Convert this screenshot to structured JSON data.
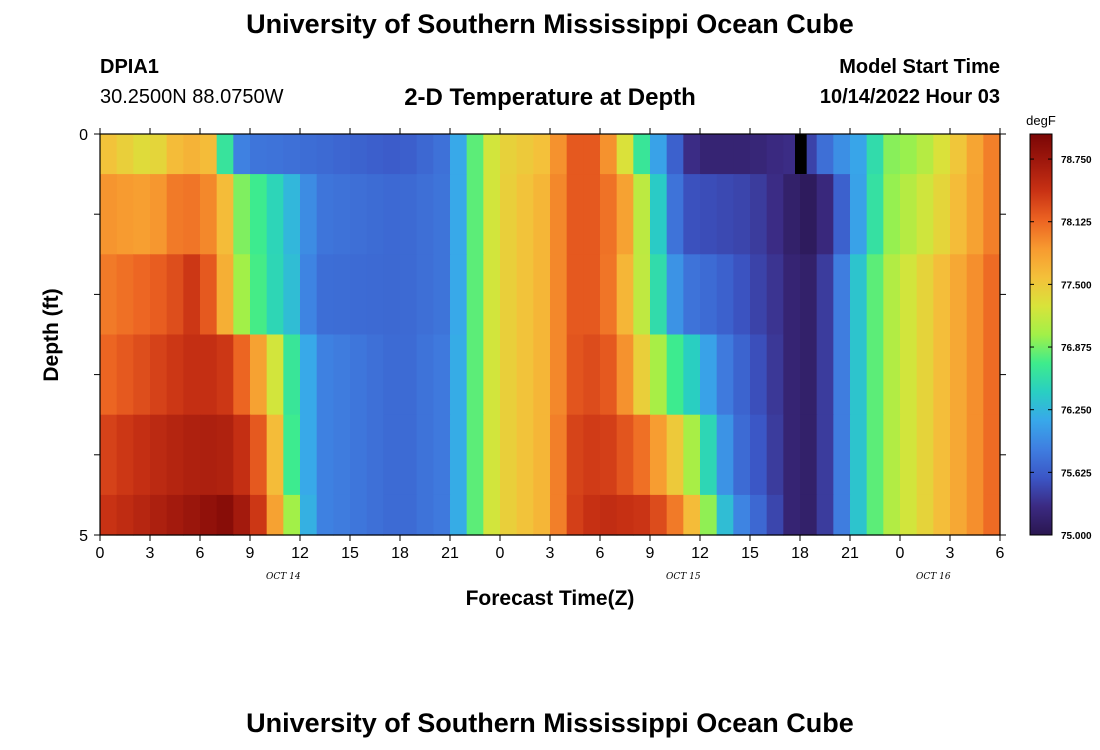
{
  "header": {
    "title": "University of Southern Mississippi Ocean Cube",
    "station_id": "DPIA1",
    "station_coords": "30.2500N  88.0750W",
    "plot_title": "2-D Temperature at Depth",
    "model_start_label": "Model Start Time",
    "model_start_time": "10/14/2022 Hour 03"
  },
  "footer": {
    "title": "University of Southern Mississippi Ocean Cube"
  },
  "colors": {
    "colormap": [
      "#2a1650",
      "#3b2a82",
      "#3b56c6",
      "#3f7ee0",
      "#38a8ea",
      "#29cfc2",
      "#3eec8c",
      "#a2f048",
      "#d9e33a",
      "#f4c03a",
      "#f79a30",
      "#ec6322",
      "#c93214",
      "#a1190d",
      "#7a0605"
    ],
    "missing": "#000000",
    "frame": "#000000"
  },
  "chart_data": {
    "type": "heatmap",
    "title": "2-D Temperature at Depth",
    "xlabel": "Forecast Time(Z)",
    "ylabel": "Depth (ft)",
    "xlim": [
      0,
      54
    ],
    "ylim": [
      0,
      5
    ],
    "x_ticks": [
      {
        "value": 0,
        "label": "0"
      },
      {
        "value": 3,
        "label": "3"
      },
      {
        "value": 6,
        "label": "6"
      },
      {
        "value": 9,
        "label": "9"
      },
      {
        "value": 12,
        "label": "12"
      },
      {
        "value": 15,
        "label": "15"
      },
      {
        "value": 18,
        "label": "18"
      },
      {
        "value": 21,
        "label": "21"
      },
      {
        "value": 24,
        "label": "0"
      },
      {
        "value": 27,
        "label": "3"
      },
      {
        "value": 30,
        "label": "6"
      },
      {
        "value": 33,
        "label": "9"
      },
      {
        "value": 36,
        "label": "12"
      },
      {
        "value": 39,
        "label": "15"
      },
      {
        "value": 42,
        "label": "18"
      },
      {
        "value": 45,
        "label": "21"
      },
      {
        "value": 48,
        "label": "0"
      },
      {
        "value": 51,
        "label": "3"
      },
      {
        "value": 54,
        "label": "6"
      }
    ],
    "date_labels": [
      {
        "value": 11,
        "label": "OCT 14"
      },
      {
        "value": 35,
        "label": "OCT 15"
      },
      {
        "value": 50,
        "label": "OCT 16"
      }
    ],
    "y_tick_labels": [
      {
        "value": 0,
        "label": "0"
      },
      {
        "value": 5,
        "label": "5"
      }
    ],
    "colorbar": {
      "unit": "degF",
      "min": 75.0,
      "max": 79.0,
      "ticks": [
        {
          "value": 75.0,
          "label": "75.000"
        },
        {
          "value": 75.625,
          "label": "75.625"
        },
        {
          "value": 76.25,
          "label": "76.250"
        },
        {
          "value": 76.875,
          "label": "76.875"
        },
        {
          "value": 77.5,
          "label": "77.500"
        },
        {
          "value": 78.125,
          "label": "78.125"
        },
        {
          "value": 78.75,
          "label": "78.750"
        }
      ]
    },
    "depth_levels": [
      {
        "top": 0.0,
        "bottom": 0.5
      },
      {
        "top": 0.5,
        "bottom": 1.5
      },
      {
        "top": 1.5,
        "bottom": 2.5
      },
      {
        "top": 2.5,
        "bottom": 3.5
      },
      {
        "top": 3.5,
        "bottom": 4.5
      },
      {
        "top": 4.5,
        "bottom": 5.0
      }
    ],
    "time_step_hours": 1,
    "series": [
      {
        "depth_index": 0,
        "time_keys": [
          [
            0,
            77.6
          ],
          [
            3,
            77.3
          ],
          [
            5,
            77.7
          ],
          [
            6.5,
            77.6
          ],
          [
            7.3,
            76.9
          ],
          [
            8,
            75.95
          ],
          [
            9,
            75.8
          ],
          [
            12,
            75.75
          ],
          [
            18,
            75.6
          ],
          [
            21,
            75.8
          ],
          [
            22,
            76.5
          ],
          [
            23,
            77.1
          ],
          [
            24,
            77.4
          ],
          [
            27,
            77.6
          ],
          [
            28,
            78.2
          ],
          [
            30,
            78.2
          ],
          [
            31,
            77.6
          ],
          [
            32,
            77.0
          ],
          [
            33,
            76.3
          ],
          [
            34,
            75.9
          ],
          [
            35,
            75.4
          ],
          [
            36,
            75.2
          ],
          [
            39,
            75.2
          ],
          [
            41,
            75.3
          ],
          [
            42,
            75.3
          ],
          [
            43,
            75.6
          ],
          [
            44,
            75.9
          ],
          [
            46,
            76.2
          ],
          [
            47,
            76.9
          ],
          [
            49,
            77.0
          ],
          [
            51,
            77.4
          ],
          [
            53,
            77.9
          ],
          [
            54,
            78.1
          ]
        ],
        "missing": [
          [
            41.7,
            42.4
          ]
        ]
      },
      {
        "depth_index": 1,
        "time_keys": [
          [
            0,
            77.9
          ],
          [
            3,
            77.8
          ],
          [
            5,
            78.1
          ],
          [
            7,
            77.9
          ],
          [
            7.5,
            77.6
          ],
          [
            8,
            77.0
          ],
          [
            10,
            76.6
          ],
          [
            11.5,
            76.25
          ],
          [
            13,
            75.8
          ],
          [
            18,
            75.7
          ],
          [
            21,
            75.8
          ],
          [
            22,
            76.5
          ],
          [
            23,
            77.1
          ],
          [
            24,
            77.4
          ],
          [
            27,
            77.7
          ],
          [
            28,
            78.2
          ],
          [
            30,
            78.2
          ],
          [
            31.5,
            77.8
          ],
          [
            33,
            76.8
          ],
          [
            34,
            76.0
          ],
          [
            35,
            75.55
          ],
          [
            39,
            75.45
          ],
          [
            41,
            75.25
          ],
          [
            42,
            75.05
          ],
          [
            43,
            75.1
          ],
          [
            44,
            75.4
          ],
          [
            45,
            75.9
          ],
          [
            46,
            76.3
          ],
          [
            47,
            76.9
          ],
          [
            50,
            77.3
          ],
          [
            53,
            77.9
          ],
          [
            54,
            78.1
          ]
        ],
        "missing": []
      },
      {
        "depth_index": 2,
        "time_keys": [
          [
            0,
            78.0
          ],
          [
            4,
            78.2
          ],
          [
            5.5,
            78.4
          ],
          [
            6.5,
            78.2
          ],
          [
            7.5,
            77.7
          ],
          [
            8.5,
            77.0
          ],
          [
            10,
            76.6
          ],
          [
            11.5,
            76.3
          ],
          [
            12.5,
            75.9
          ],
          [
            13,
            75.75
          ],
          [
            18,
            75.7
          ],
          [
            21,
            75.8
          ],
          [
            22,
            76.5
          ],
          [
            23,
            77.1
          ],
          [
            24,
            77.4
          ],
          [
            27,
            77.7
          ],
          [
            28,
            78.2
          ],
          [
            30,
            78.2
          ],
          [
            31,
            77.9
          ],
          [
            32,
            77.4
          ],
          [
            33,
            76.9
          ],
          [
            34,
            76.2
          ],
          [
            35,
            75.8
          ],
          [
            37,
            75.7
          ],
          [
            39,
            75.5
          ],
          [
            41,
            75.3
          ],
          [
            42,
            75.1
          ],
          [
            43,
            75.2
          ],
          [
            44,
            75.6
          ],
          [
            45,
            76.1
          ],
          [
            46,
            76.6
          ],
          [
            47,
            77.0
          ],
          [
            50,
            77.5
          ],
          [
            53,
            78.0
          ],
          [
            54,
            78.2
          ]
        ],
        "missing": []
      },
      {
        "depth_index": 3,
        "time_keys": [
          [
            0,
            78.1
          ],
          [
            3,
            78.3
          ],
          [
            6,
            78.5
          ],
          [
            7.5,
            78.4
          ],
          [
            9,
            78.0
          ],
          [
            10,
            77.6
          ],
          [
            11,
            76.9
          ],
          [
            12,
            76.4
          ],
          [
            13,
            75.9
          ],
          [
            18,
            75.7
          ],
          [
            21,
            75.85
          ],
          [
            22,
            76.5
          ],
          [
            23,
            77.1
          ],
          [
            24,
            77.4
          ],
          [
            27,
            77.7
          ],
          [
            28,
            78.2
          ],
          [
            30,
            78.3
          ],
          [
            31,
            78.1
          ],
          [
            32,
            77.7
          ],
          [
            33,
            77.2
          ],
          [
            34.5,
            76.7
          ],
          [
            36,
            76.3
          ],
          [
            37,
            75.9
          ],
          [
            39,
            75.6
          ],
          [
            41,
            75.3
          ],
          [
            42,
            75.1
          ],
          [
            43,
            75.2
          ],
          [
            44,
            75.6
          ],
          [
            45,
            76.1
          ],
          [
            46,
            76.6
          ],
          [
            47,
            77.0
          ],
          [
            50,
            77.5
          ],
          [
            53,
            78.0
          ],
          [
            54,
            78.2
          ]
        ],
        "missing": []
      },
      {
        "depth_index": 4,
        "time_keys": [
          [
            0,
            78.3
          ],
          [
            3,
            78.5
          ],
          [
            6,
            78.65
          ],
          [
            8,
            78.6
          ],
          [
            9.5,
            78.2
          ],
          [
            10.5,
            77.6
          ],
          [
            11,
            77.0
          ],
          [
            12,
            76.4
          ],
          [
            13,
            75.9
          ],
          [
            18,
            75.7
          ],
          [
            21,
            75.85
          ],
          [
            22,
            76.5
          ],
          [
            23,
            77.1
          ],
          [
            24,
            77.4
          ],
          [
            27,
            77.7
          ],
          [
            28,
            78.3
          ],
          [
            30,
            78.4
          ],
          [
            31,
            78.3
          ],
          [
            33,
            78.0
          ],
          [
            34.5,
            77.5
          ],
          [
            36,
            76.8
          ],
          [
            37,
            76.2
          ],
          [
            38,
            75.8
          ],
          [
            40,
            75.5
          ],
          [
            41.5,
            75.2
          ],
          [
            42,
            75.1
          ],
          [
            43,
            75.2
          ],
          [
            44,
            75.6
          ],
          [
            45,
            76.1
          ],
          [
            46,
            76.6
          ],
          [
            47,
            77.0
          ],
          [
            50,
            77.5
          ],
          [
            53,
            78.0
          ],
          [
            54,
            78.2
          ]
        ],
        "missing": []
      },
      {
        "depth_index": 5,
        "time_keys": [
          [
            0,
            78.4
          ],
          [
            3,
            78.6
          ],
          [
            6,
            78.8
          ],
          [
            7.5,
            78.9
          ],
          [
            9,
            78.6
          ],
          [
            10,
            78.2
          ],
          [
            11,
            77.4
          ],
          [
            11.5,
            77.0
          ],
          [
            12,
            76.5
          ],
          [
            13,
            75.9
          ],
          [
            18,
            75.7
          ],
          [
            21,
            75.85
          ],
          [
            22,
            76.5
          ],
          [
            23,
            77.1
          ],
          [
            24,
            77.4
          ],
          [
            27,
            77.7
          ],
          [
            28,
            78.3
          ],
          [
            30,
            78.5
          ],
          [
            33,
            78.4
          ],
          [
            35,
            77.9
          ],
          [
            36,
            77.3
          ],
          [
            37,
            76.6
          ],
          [
            38,
            76.0
          ],
          [
            40,
            75.6
          ],
          [
            41.5,
            75.2
          ],
          [
            42,
            75.1
          ],
          [
            43,
            75.2
          ],
          [
            44,
            75.6
          ],
          [
            45,
            76.1
          ],
          [
            46,
            76.6
          ],
          [
            47,
            77.0
          ],
          [
            50,
            77.5
          ],
          [
            53,
            78.0
          ],
          [
            54,
            78.2
          ]
        ],
        "missing": []
      }
    ]
  }
}
